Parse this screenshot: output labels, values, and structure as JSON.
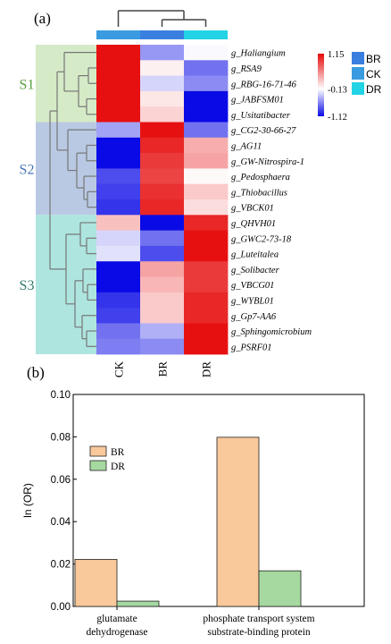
{
  "panel_a_label": "(a)",
  "panel_b_label": "(b)",
  "chart_data": [
    {
      "type": "heatmap",
      "panel": "(a)",
      "columns": [
        "CK",
        "BR",
        "DR"
      ],
      "column_colors": [
        "#3a9be0",
        "#3a7fe0",
        "#22d3e6"
      ],
      "rows": [
        "g_Haliangium",
        "g_RSA9",
        "g_RBG-16-71-46",
        "g_JABFSM01",
        "g_Usitatibacter",
        "g_CG2-30-66-27",
        "g_AG11",
        "g_GW-Nitrospira-1",
        "g_Pedosphaera",
        "g_Thiobacillus",
        "g_VBCK01",
        "g_QHVH01",
        "g_GWC2-73-18",
        "g_Luteitalea",
        "g_Solibacter",
        "g_VBCG01",
        "g_WYBL01",
        "g_Gp7-AA6",
        "g_Sphingomicrobium",
        "g_PSRF01"
      ],
      "values": [
        [
          1.12,
          -0.55,
          -0.15
        ],
        [
          1.12,
          -0.05,
          -0.7
        ],
        [
          1.12,
          -0.3,
          -0.6
        ],
        [
          1.12,
          0.0,
          -1.12
        ],
        [
          1.12,
          0.1,
          -1.12
        ],
        [
          -0.5,
          1.12,
          -0.7
        ],
        [
          -1.12,
          1.0,
          0.3
        ],
        [
          -1.12,
          0.9,
          0.35
        ],
        [
          -0.85,
          0.85,
          -0.1
        ],
        [
          -0.9,
          0.95,
          0.15
        ],
        [
          -0.95,
          1.0,
          0.05
        ],
        [
          0.2,
          -1.12,
          1.0
        ],
        [
          -0.3,
          -0.7,
          1.12
        ],
        [
          -0.25,
          -0.85,
          1.12
        ],
        [
          -1.12,
          0.35,
          0.9
        ],
        [
          -1.12,
          0.25,
          0.9
        ],
        [
          -0.95,
          0.15,
          1.0
        ],
        [
          -0.9,
          0.15,
          1.0
        ],
        [
          -0.7,
          -0.45,
          1.12
        ],
        [
          -0.65,
          -0.6,
          1.12
        ]
      ],
      "color_scale": {
        "max": 1.15,
        "mid": -0.13,
        "min": -1.12,
        "max_label": "1.15",
        "mid_label": "-0.13",
        "min_label": "-1.12",
        "colors": [
          "#0a0ae6",
          "#ffffff",
          "#e60a0a"
        ]
      },
      "legend": [
        "BR",
        "CK",
        "DR"
      ],
      "legend_colors": [
        "#3a7fe0",
        "#3a9be0",
        "#22d3e6"
      ],
      "groups": [
        {
          "name": "S1",
          "rows": [
            0,
            4
          ],
          "color": "#d5eac6",
          "text_color": "#5a9e3e"
        },
        {
          "name": "S2",
          "rows": [
            5,
            10
          ],
          "color": "#b9c9e4",
          "text_color": "#4a78b8"
        },
        {
          "name": "S3",
          "rows": [
            11,
            19
          ],
          "color": "#aee5df",
          "text_color": "#2e7a6c"
        }
      ]
    },
    {
      "type": "bar",
      "panel": "(b)",
      "categories": [
        "glutamate\ndehydrogenase",
        "phosphate transport system\nsubstrate-binding protein"
      ],
      "series": [
        {
          "name": "BR",
          "values": [
            0.0222,
            0.0798
          ],
          "color": "#f9c89b"
        },
        {
          "name": "DR",
          "values": [
            0.0025,
            0.0168
          ],
          "color": "#a6d9a0"
        }
      ],
      "ylabel": "ln (OR)",
      "xlabel": "",
      "ylim": [
        0,
        0.1
      ],
      "yticks": [
        "0.00",
        "0.02",
        "0.04",
        "0.06",
        "0.08",
        "0.10"
      ],
      "legend_position": "upper-left"
    }
  ]
}
